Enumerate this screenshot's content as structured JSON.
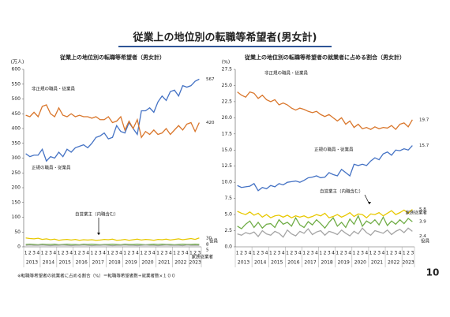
{
  "title": "従業上の地位別の転職等希望者(男女計)",
  "footnote": "※転職等希望者の就業者に占める割合（%）＝転職等希望者数÷就業者数×１００",
  "page_number": "10",
  "chart_data": [
    {
      "type": "line",
      "title": "従業上の地位別の転職等希望者（男女計）",
      "y_unit": "(万人)",
      "categories": [
        "1",
        "2",
        "3",
        "4",
        "1",
        "2",
        "3",
        "4",
        "1",
        "2",
        "3",
        "4",
        "1",
        "2",
        "3",
        "4",
        "1",
        "2",
        "3",
        "4",
        "1",
        "2",
        "3",
        "4",
        "1",
        "2",
        "3",
        "4",
        "1",
        "2",
        "3",
        "4",
        "1",
        "2",
        "3",
        "4",
        "1",
        "2",
        "3",
        "4",
        "1",
        "2",
        "3"
      ],
      "years": [
        "2013",
        "2014",
        "2015",
        "2016",
        "2017",
        "2018",
        "2019",
        "2020",
        "2021",
        "2022",
        "2023"
      ],
      "ylim": [
        0,
        600
      ],
      "yticks": [
        0,
        50,
        100,
        150,
        200,
        250,
        300,
        350,
        400,
        450,
        500,
        550,
        600
      ],
      "series": [
        {
          "name": "正規の職員・従業員",
          "color": "#4472c4",
          "values": [
            315,
            305,
            310,
            310,
            330,
            290,
            305,
            300,
            320,
            305,
            330,
            320,
            335,
            340,
            345,
            335,
            350,
            370,
            375,
            385,
            365,
            370,
            410,
            390,
            385,
            420,
            400,
            380,
            460,
            460,
            470,
            455,
            490,
            510,
            495,
            525,
            530,
            510,
            545,
            540,
            545,
            560,
            567
          ]
        },
        {
          "name": "非正規の職員・従業員",
          "color": "#d9762b",
          "values": [
            445,
            440,
            455,
            440,
            475,
            480,
            450,
            440,
            470,
            445,
            440,
            450,
            440,
            445,
            440,
            440,
            435,
            440,
            430,
            430,
            440,
            420,
            425,
            440,
            395,
            425,
            400,
            430,
            370,
            390,
            380,
            395,
            380,
            385,
            400,
            380,
            395,
            410,
            395,
            415,
            420,
            390,
            420
          ]
        },
        {
          "name": "自営業主（内職含む）",
          "color": "#e8c800",
          "values": [
            30,
            28,
            27,
            29,
            25,
            27,
            24,
            26,
            22,
            24,
            25,
            23,
            25,
            22,
            24,
            23,
            24,
            22,
            23,
            25,
            24,
            26,
            22,
            23,
            25,
            22,
            24,
            26,
            23,
            25,
            24,
            22,
            25,
            24,
            26,
            23,
            25,
            27,
            24,
            26,
            28,
            25,
            30
          ]
        },
        {
          "name": "役員",
          "color": "#70ad47",
          "values": [
            8,
            9,
            8,
            7,
            9,
            8,
            8,
            9,
            7,
            8,
            9,
            8,
            8,
            7,
            9,
            8,
            9,
            8,
            7,
            8,
            8,
            9,
            8,
            7,
            9,
            8,
            8,
            9,
            8,
            7,
            8,
            9,
            8,
            9,
            8,
            8,
            7,
            8,
            9,
            8,
            8,
            9,
            8
          ]
        },
        {
          "name": "家族従業者",
          "color": "#a5a5a5",
          "values": [
            5,
            6,
            5,
            5,
            6,
            5,
            4,
            5,
            5,
            6,
            5,
            4,
            5,
            5,
            6,
            5,
            4,
            5,
            5,
            6,
            5,
            4,
            5,
            5,
            6,
            5,
            5,
            4,
            5,
            6,
            5,
            5,
            4,
            5,
            6,
            5,
            5,
            5,
            4,
            6,
            5,
            5,
            5
          ]
        }
      ]
    },
    {
      "type": "line",
      "title": "従業上の地位別の転職等希望者の就業者に占める割合（男女計）",
      "y_unit": "(%)",
      "categories": [
        "1",
        "2",
        "3",
        "4",
        "1",
        "2",
        "3",
        "4",
        "1",
        "2",
        "3",
        "4",
        "1",
        "2",
        "3",
        "4",
        "1",
        "2",
        "3",
        "4",
        "1",
        "2",
        "3",
        "4",
        "1",
        "2",
        "3",
        "4",
        "1",
        "2",
        "3",
        "4",
        "1",
        "2",
        "3",
        "4",
        "1",
        "2",
        "3",
        "4",
        "1",
        "2",
        "3"
      ],
      "years": [
        "2013",
        "2014",
        "2015",
        "2016",
        "2017",
        "2018",
        "2019",
        "2020",
        "2021",
        "2022",
        "2023"
      ],
      "ylim": [
        0,
        27.5
      ],
      "yticks": [
        {
          "value": 0,
          "label": "0.0"
        },
        2.5,
        {
          "value": 5,
          "label": "5.0"
        },
        7.5,
        {
          "value": 10,
          "label": "10.0"
        },
        12.5,
        {
          "value": 15,
          "label": "15.0"
        },
        17.5,
        {
          "value": 20,
          "label": "20.0"
        },
        22.5,
        {
          "value": 25,
          "label": "25.0"
        },
        27.5
      ],
      "series": [
        {
          "name": "正規の職員・従業員",
          "color": "#4472c4",
          "values": [
            9.5,
            9.2,
            9.3,
            9.4,
            9.8,
            8.7,
            9.2,
            9,
            9.5,
            9.3,
            9.8,
            9.6,
            10,
            10.1,
            10.2,
            10,
            10.3,
            10.7,
            10.8,
            11,
            10.7,
            10.8,
            11.5,
            11.2,
            11,
            12,
            11.5,
            11,
            12.8,
            12.6,
            12.8,
            12.6,
            13.3,
            13.8,
            13.5,
            14.4,
            14.7,
            14.2,
            15,
            14.9,
            15.2,
            15,
            15.7
          ]
        },
        {
          "name": "非正規の職員・従業員",
          "color": "#d9762b",
          "values": [
            24,
            23.5,
            23.2,
            24,
            23.8,
            23,
            23.5,
            22.8,
            22.5,
            22.8,
            22,
            22.3,
            22,
            21.5,
            21.2,
            21.5,
            21.3,
            21,
            20.8,
            21,
            20.5,
            20.2,
            20.5,
            20,
            19.5,
            20,
            19,
            19.5,
            18.5,
            19,
            18.3,
            18.5,
            18.2,
            18.6,
            18.3,
            18.5,
            18.4,
            18.8,
            18.2,
            19,
            19.2,
            18.6,
            19.7
          ]
        },
        {
          "name": "自営業主（内職含む）",
          "color": "#e8c800",
          "values": [
            5.5,
            5.2,
            5,
            5.4,
            4.9,
            5.2,
            4.6,
            5,
            4.5,
            4.8,
            4.9,
            4.6,
            4.9,
            4.5,
            4.8,
            4.6,
            4.8,
            4.5,
            4.7,
            5,
            4.8,
            5.2,
            4.5,
            4.7,
            5,
            4.6,
            4.9,
            5.3,
            4.7,
            5.1,
            5,
            4.5,
            5.1,
            5,
            5.3,
            4.8,
            5.2,
            5.6,
            5,
            5.3,
            5.7,
            5.2,
            5.8
          ]
        },
        {
          "name": "役員",
          "color": "#70ad47",
          "values": [
            3.2,
            2.8,
            3.5,
            4,
            3,
            3.8,
            2.9,
            3.5,
            3.6,
            3,
            4.2,
            3.5,
            3.8,
            3.2,
            4.5,
            3.4,
            3,
            3.9,
            3.4,
            4.2,
            3.6,
            2.9,
            3.8,
            4.5,
            3.2,
            3.8,
            3,
            4.3,
            3.5,
            4.8,
            3.2,
            4,
            3.6,
            4.2,
            3.4,
            4.6,
            3.3,
            4,
            3.5,
            4.2,
            3.6,
            4.4,
            3.9
          ]
        },
        {
          "name": "家族従業者",
          "color": "#a5a5a5",
          "values": [
            2,
            1.8,
            2.2,
            2,
            2.3,
            1.6,
            2.5,
            2,
            1.8,
            2.4,
            2.1,
            1.5,
            2.6,
            2,
            1.7,
            2.4,
            2.1,
            2.8,
            1.9,
            2.3,
            2.5,
            1.8,
            2.4,
            2.2,
            1.9,
            2.6,
            2.1,
            1.7,
            2.4,
            2,
            2.9,
            2.2,
            1.8,
            2.5,
            2.3,
            2.1,
            2.6,
            1.9,
            2.4,
            2.7,
            2.2,
            2.9,
            2.4
          ]
        }
      ]
    }
  ]
}
